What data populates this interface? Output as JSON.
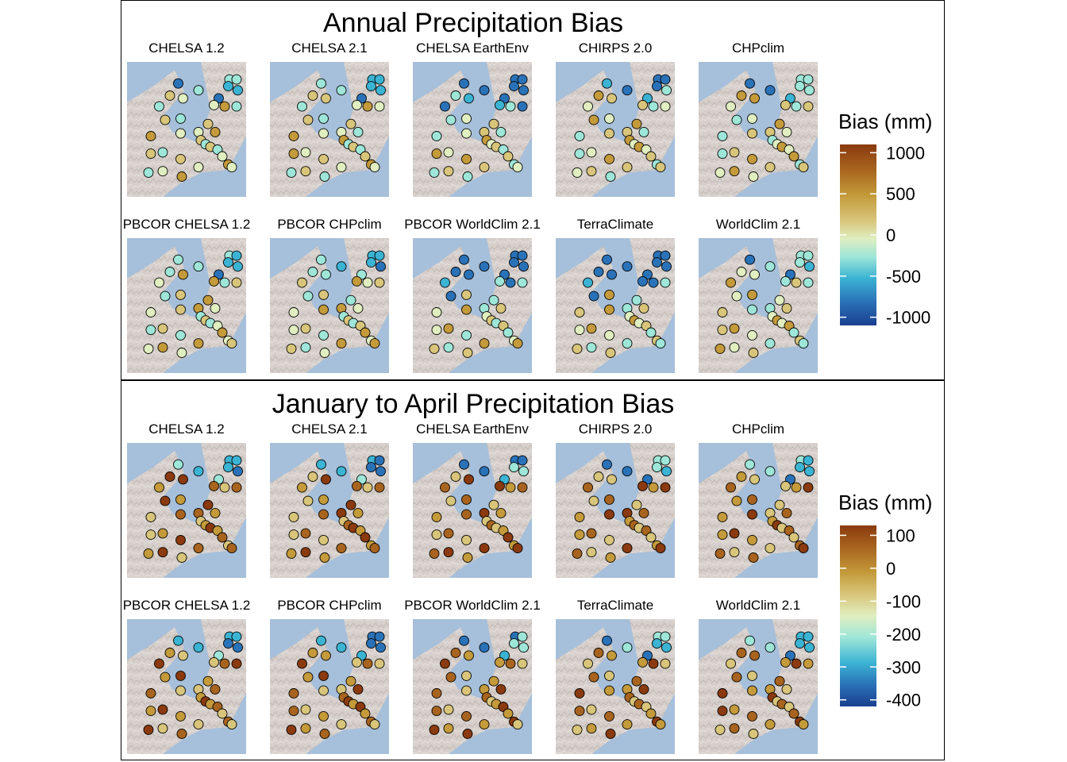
{
  "chart_data": [
    {
      "type": "map",
      "title": "Annual Precipitation Bias",
      "panels": [
        "CHELSA 1.2",
        "CHELSA 2.1",
        "CHELSA EarthEnv",
        "CHIRPS 2.0",
        "CHPclim",
        "PBCOR CHELSA 1.2",
        "PBCOR CHPclim",
        "PBCOR WorldClim 2.1",
        "TerraClimate",
        "WorldClim 2.1"
      ],
      "legend": {
        "title": "Bias (mm)",
        "ticks": [
          1000,
          500,
          0,
          -500,
          -1000
        ],
        "range": [
          -1100,
          1100
        ]
      }
    },
    {
      "type": "map",
      "title": "January to April Precipitation Bias",
      "panels": [
        "CHELSA 1.2",
        "CHELSA 2.1",
        "CHELSA EarthEnv",
        "CHIRPS 2.0",
        "CHPclim",
        "PBCOR CHELSA 1.2",
        "PBCOR CHPclim",
        "PBCOR WorldClim 2.1",
        "TerraClimate",
        "WorldClim 2.1"
      ],
      "legend": {
        "title": "Bias (mm)",
        "ticks": [
          100,
          0,
          -100,
          -200,
          -300,
          -400
        ],
        "range": [
          -420,
          130
        ]
      }
    }
  ],
  "colors": {
    "sea": "#a6bfda",
    "land": "#d6cfcb",
    "scale": [
      "#1b3f8f",
      "#2a72b8",
      "#3bb3d3",
      "#9de6d8",
      "#e0eec0",
      "#d8c57a",
      "#c49a3a",
      "#a8641e",
      "#8a3a0e"
    ]
  }
}
